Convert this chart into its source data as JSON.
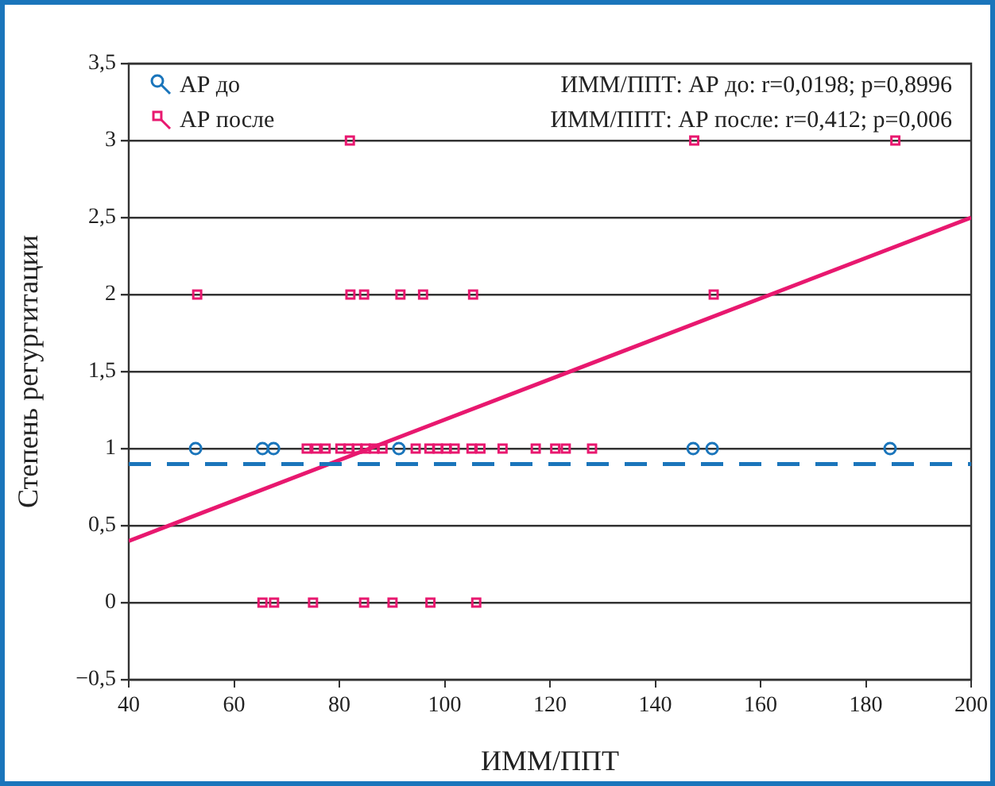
{
  "chart_data": {
    "type": "scatter",
    "xlabel": "ИММ/ППТ",
    "ylabel": "Степень регургитации",
    "annotations": [
      "ИММ/ППТ: АР до: r=0,0198; p=0,8996",
      "ИММ/ППТ: АР после: r=0,412; p=0,006"
    ],
    "series": [
      {
        "name": "АР до",
        "color": "#1a75bb",
        "marker": "circle",
        "x": [
          52.7,
          65.4,
          67.5,
          91.3,
          147.2,
          150.8,
          184.6
        ],
        "values": [
          1,
          1,
          1,
          1,
          1,
          1,
          1
        ]
      },
      {
        "name": "АР после",
        "color": "#e8186f",
        "marker": "square",
        "x": [
          82,
          147.4,
          185.6,
          53,
          82.1,
          84.7,
          91.6,
          95.9,
          105.4,
          151.1,
          73.8,
          75.6,
          77.4,
          80.2,
          81.8,
          83.4,
          85,
          86.6,
          88.2,
          94.5,
          97.1,
          98.7,
          100.3,
          101.9,
          105.1,
          106.8,
          111,
          117.3,
          121,
          123,
          128,
          65.4,
          67.6,
          75,
          84.7,
          90.1,
          97.3,
          106
        ],
        "values": [
          3,
          3,
          3,
          2,
          2,
          2,
          2,
          2,
          2,
          2,
          1,
          1,
          1,
          1,
          1,
          1,
          1,
          1,
          1,
          1,
          1,
          1,
          1,
          1,
          1,
          1,
          1,
          1,
          1,
          1,
          1,
          0,
          0,
          0,
          0,
          0,
          0,
          0
        ]
      },
      {
        "type": "line",
        "color": "#1a75bb",
        "line_style": "dashed",
        "marker": "none",
        "x": [
          40,
          200
        ],
        "values": [
          0.9,
          0.9
        ]
      },
      {
        "type": "line",
        "color": "#e8186f",
        "line_style": "solid",
        "marker": "none",
        "x": [
          40,
          200
        ],
        "values": [
          0.4,
          2.5
        ]
      }
    ],
    "xlim": [
      40,
      200
    ],
    "xticks": [
      40,
      60,
      80,
      100,
      120,
      140,
      160,
      180,
      200
    ],
    "ylim": [
      -0.5,
      3.5
    ],
    "yticks": [
      {
        "value": -0.5,
        "label": "−0,5"
      },
      0,
      {
        "value": 0.5,
        "label": "0,5"
      },
      1,
      {
        "value": 1.5,
        "label": "1,5"
      },
      2,
      {
        "value": 2.5,
        "label": "2,5"
      },
      3,
      {
        "value": 3.5,
        "label": "3,5"
      }
    ],
    "grid": "y",
    "legend": "top left"
  }
}
